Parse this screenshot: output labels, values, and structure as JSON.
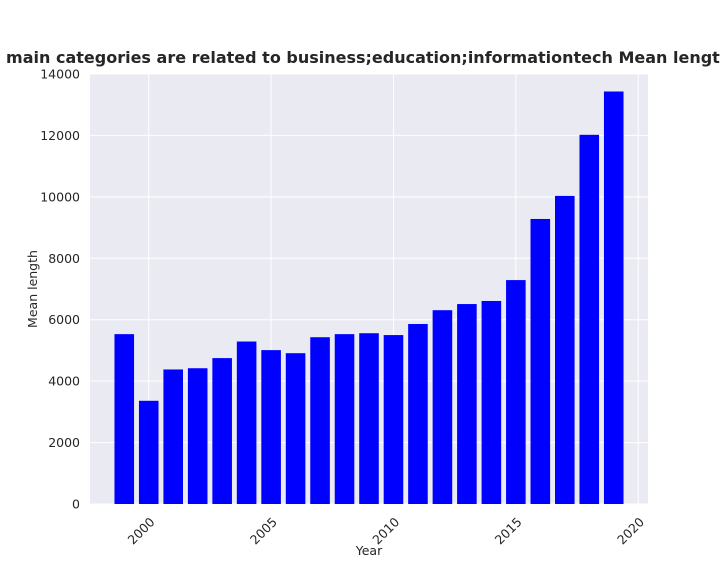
{
  "chart_data": {
    "type": "bar",
    "title": "Companies whose main categories are related to business;education;informationtech Mean length in privacy policies",
    "xlabel": "Year",
    "ylabel": "Mean length",
    "x": [
      1999,
      2000,
      2001,
      2002,
      2003,
      2004,
      2005,
      2006,
      2007,
      2008,
      2009,
      2010,
      2011,
      2012,
      2013,
      2014,
      2015,
      2016,
      2017,
      2018,
      2019
    ],
    "values": [
      5530,
      3360,
      4380,
      4420,
      4750,
      5290,
      5010,
      4910,
      5430,
      5530,
      5560,
      5500,
      5860,
      6310,
      6510,
      6610,
      7290,
      9280,
      10030,
      12020,
      13430
    ],
    "xlim": [
      1997.6,
      2020.4
    ],
    "ylim": [
      0,
      14000
    ],
    "xticks": [
      2000,
      2005,
      2010,
      2015,
      2020
    ],
    "yticks": [
      0,
      2000,
      4000,
      6000,
      8000,
      10000,
      12000,
      14000
    ],
    "bar_color": "#0000ff",
    "plot_background": "#eaeaf2",
    "grid": true,
    "grid_color": "#ffffff"
  }
}
